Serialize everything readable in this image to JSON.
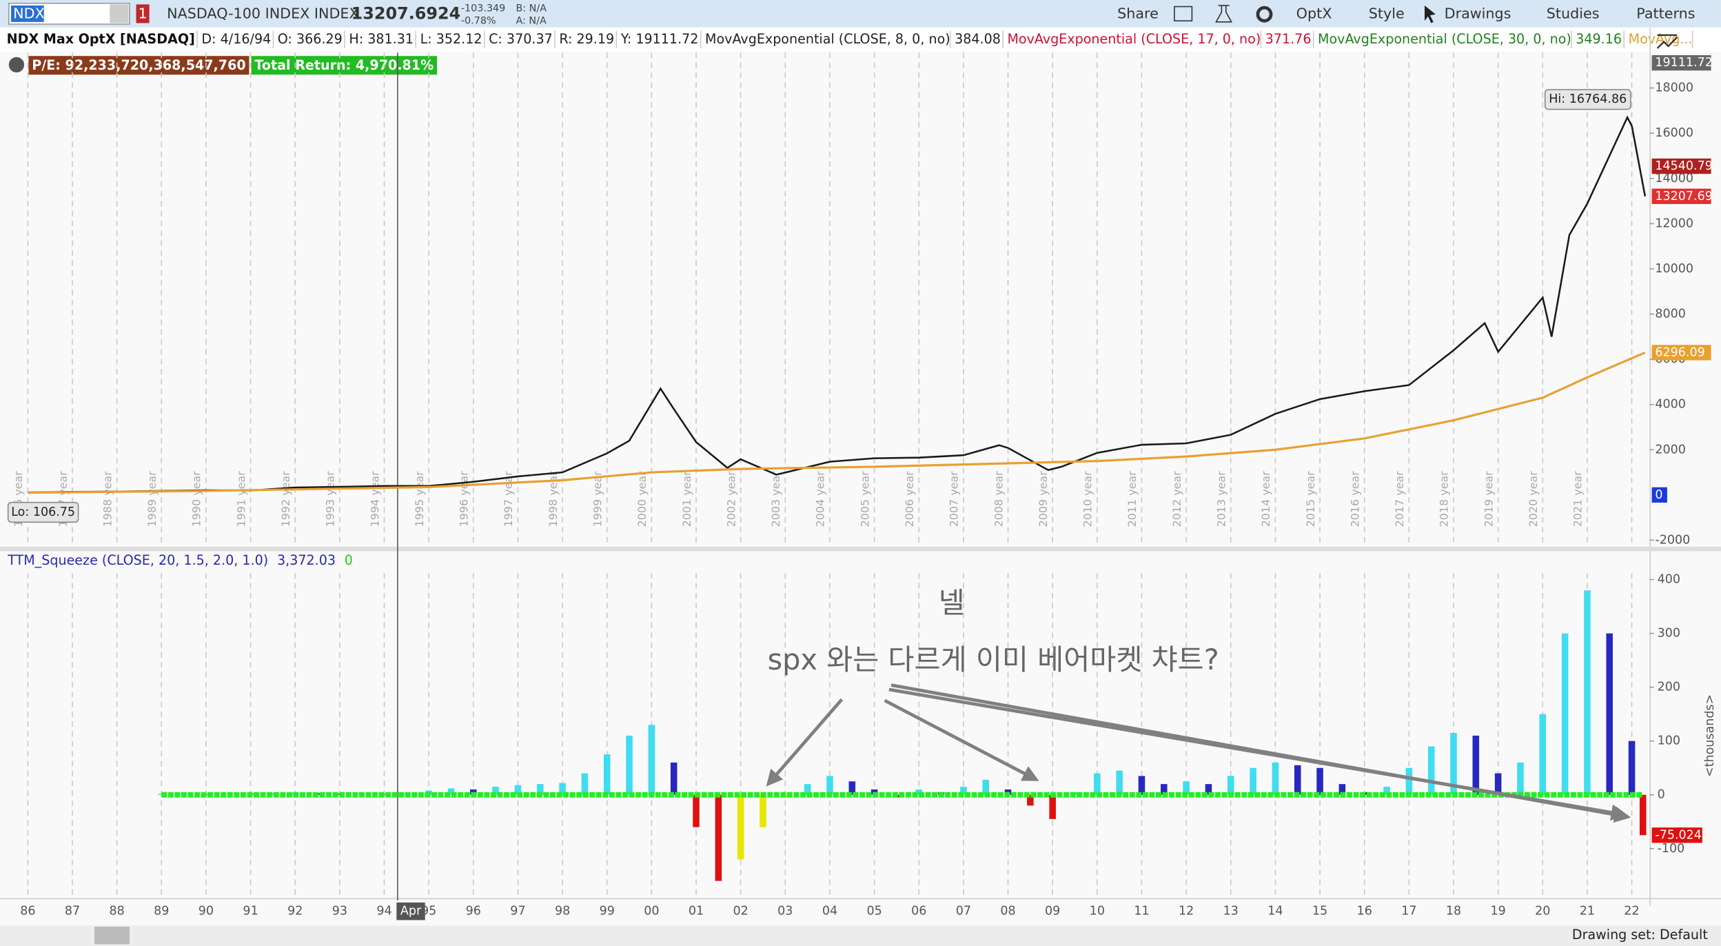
{
  "toolbar": {
    "symbol": "NDX",
    "alert_count": "1",
    "description": "NASDAQ-100 INDEX INDEX",
    "last": "13207.6924",
    "change": "-103.349",
    "change_pct": "-0.78%",
    "bid": "B: N/A",
    "ask": "A: N/A",
    "buttons": [
      "Share",
      "OptX",
      "Style",
      "Drawings",
      "Studies",
      "Patterns"
    ]
  },
  "header": {
    "title": "NDX Max OptX [NASDAQ]",
    "fields": [
      "D: 4/16/94",
      "O: 366.29",
      "H: 381.31",
      "L: 352.12",
      "C: 370.37",
      "R: 29.19",
      "Y: 19111.72"
    ],
    "studies": [
      {
        "label": "MovAvgExponential (CLOSE, 8, 0, no)",
        "value": "384.08",
        "color": "#222222"
      },
      {
        "label": "MovAvgExponential (CLOSE, 17, 0, no)",
        "value": "371.76",
        "color": "#d01030"
      },
      {
        "label": "MovAvgExponential (CLOSE, 30, 0, no)",
        "value": "349.16",
        "color": "#208020"
      },
      {
        "label": "MovAvg...",
        "value": "",
        "color": "#e0a030"
      }
    ],
    "badges": [
      {
        "text": "P/E: 92,233,720,368,547,760",
        "color": "#8b3a1a"
      },
      {
        "text": "Total Return: 4,970.81%",
        "color": "#22bb22"
      }
    ]
  },
  "chart_data": [
    {
      "type": "line",
      "xlim": [
        1985.5,
        2022.4
      ],
      "ylim": [
        -2244,
        19561
      ],
      "yticks": [
        -2000,
        2000,
        4000,
        6000,
        8000,
        10000,
        12000,
        14000,
        16000,
        18000
      ],
      "year_labels": [
        {
          "value": 1986,
          "label": "1986 year"
        },
        {
          "value": 1987,
          "label": "1987 year"
        },
        {
          "value": 1988,
          "label": "1988 year"
        },
        {
          "value": 1989,
          "label": "1989 year"
        },
        {
          "value": 1990,
          "label": "1990 year"
        },
        {
          "value": 1991,
          "label": "1991 year"
        },
        {
          "value": 1992,
          "label": "1992 year"
        },
        {
          "value": 1993,
          "label": "1993 year"
        },
        {
          "value": 1994,
          "label": "1994 year"
        },
        {
          "value": 1995,
          "label": "1995 year"
        },
        {
          "value": 1996,
          "label": "1996 year"
        },
        {
          "value": 1997,
          "label": "1997 year"
        },
        {
          "value": 1998,
          "label": "1998 year"
        },
        {
          "value": 1999,
          "label": "1999 year"
        },
        {
          "value": 2000,
          "label": "2000 year"
        },
        {
          "value": 2001,
          "label": "2001 year"
        },
        {
          "value": 2002,
          "label": "2002 year"
        },
        {
          "value": 2003,
          "label": "2003 year"
        },
        {
          "value": 2004,
          "label": "2004 year"
        },
        {
          "value": 2005,
          "label": "2005 year"
        },
        {
          "value": 2006,
          "label": "2006 year"
        },
        {
          "value": 2007,
          "label": "2007 year"
        },
        {
          "value": 2008,
          "label": "2008 year"
        },
        {
          "value": 2009,
          "label": "2009 year"
        },
        {
          "value": 2010,
          "label": "2010 year"
        },
        {
          "value": 2011,
          "label": "2011 year"
        },
        {
          "value": 2012,
          "label": "2012 year"
        },
        {
          "value": 2013,
          "label": "2013 year"
        },
        {
          "value": 2014,
          "label": "2014 year"
        },
        {
          "value": 2015,
          "label": "2015 year"
        },
        {
          "value": 2016,
          "label": "2016 year"
        },
        {
          "value": 2017,
          "label": "2017 year"
        },
        {
          "value": 2018,
          "label": "2018 year"
        },
        {
          "value": 2019,
          "label": "2019 year"
        },
        {
          "value": 2020,
          "label": "2020 year"
        },
        {
          "value": 2021,
          "label": "2021 year"
        }
      ],
      "series": [
        {
          "color": "#1a1a1a",
          "x": [
            1986,
            1987,
            1988,
            1989,
            1990,
            1991,
            1992,
            1993,
            1994,
            1995,
            1996,
            1997,
            1998,
            1999,
            1999.5,
            2000.2,
            2000.5,
            2001,
            2001.7,
            2002,
            2002.8,
            2003,
            2004,
            2005,
            2006,
            2007,
            2007.8,
            2008,
            2008.9,
            2009.2,
            2010,
            2011,
            2012,
            2013,
            2014,
            2015,
            2016,
            2017,
            2018,
            2018.7,
            2019,
            2020,
            2020.2,
            2020.6,
            2021,
            2021.9,
            2022,
            2022.3
          ],
          "values": [
            110,
            140,
            150,
            180,
            210,
            200,
            330,
            360,
            400,
            400,
            580,
            820,
            1000,
            1840,
            2400,
            4700,
            3800,
            2340,
            1200,
            1580,
            900,
            990,
            1470,
            1620,
            1650,
            1760,
            2200,
            2080,
            1100,
            1250,
            1860,
            2220,
            2280,
            2660,
            3590,
            4240,
            4590,
            4860,
            6400,
            7600,
            6330,
            8730,
            7000,
            11500,
            12890,
            16700,
            16320,
            13207.69
          ]
        },
        {
          "color": "#e8a030",
          "x": [
            1986,
            1990,
            1995,
            1998,
            2000,
            2002,
            2005,
            2008,
            2010,
            2012,
            2014,
            2016,
            2018,
            2020,
            2021,
            2022.3
          ],
          "values": [
            100,
            180,
            350,
            650,
            1000,
            1150,
            1250,
            1400,
            1500,
            1700,
            2000,
            2500,
            3300,
            4300,
            5200,
            6296.09
          ]
        }
      ],
      "price_markers": [
        {
          "value": 19111.72,
          "color": "#666666"
        },
        {
          "value": 14540.79,
          "color": "#b02020"
        },
        {
          "value": 13207.69,
          "color": "#e03030"
        },
        {
          "value": 6296.09,
          "color": "#e8a030"
        },
        {
          "value": 0,
          "color": "#1a3adb"
        }
      ],
      "hi": {
        "value": 16764.86,
        "label": "Hi: 16764.86",
        "x": 2021.9
      },
      "lo": {
        "value": 106.75,
        "label": "Lo: 106.75",
        "x": 1986
      }
    },
    {
      "type": "histogram",
      "title": "TTM_Squeeze (CLOSE, 20, 1.5, 2.0, 1.0)",
      "readout": "3,372.03",
      "readout2": "0",
      "unit": "<thousands>",
      "xlim": [
        1985.5,
        2022.4
      ],
      "ylim": [
        -192,
        412
      ],
      "yticks": [
        -100,
        0,
        100,
        200,
        300,
        400
      ],
      "bar_colors": [
        "#40dcf0",
        "#2828c0",
        "#e01010",
        "#e6e600"
      ],
      "squeeze_color": "#22ee22",
      "x": [
        1989,
        1989.5,
        1990,
        1990.5,
        1991,
        1991.5,
        1992,
        1992.5,
        1993,
        1993.5,
        1994,
        1994.5,
        1995,
        1995.5,
        1996,
        1996.5,
        1997,
        1997.5,
        1998,
        1998.5,
        1999,
        1999.5,
        2000,
        2000.5,
        2001,
        2001.5,
        2002,
        2002.5,
        2003,
        2003.5,
        2004,
        2004.5,
        2005,
        2005.5,
        2006,
        2006.5,
        2007,
        2007.5,
        2008,
        2008.5,
        2009,
        2009.5,
        2010,
        2010.5,
        2011,
        2011.5,
        2012,
        2012.5,
        2013,
        2013.5,
        2014,
        2014.5,
        2015,
        2015.5,
        2016,
        2016.5,
        2017,
        2017.5,
        2018,
        2018.5,
        2019,
        2019.5,
        2020,
        2020.5,
        2021,
        2021.5,
        2022,
        2022.25
      ],
      "values": [
        2,
        2,
        1,
        1,
        3,
        3,
        4,
        3,
        2,
        2,
        1,
        2,
        8,
        12,
        10,
        15,
        18,
        20,
        22,
        40,
        75,
        110,
        130,
        60,
        -60,
        -160,
        -120,
        -60,
        -5,
        20,
        35,
        25,
        10,
        -5,
        10,
        5,
        15,
        28,
        10,
        -20,
        -45,
        5,
        40,
        45,
        35,
        20,
        25,
        20,
        35,
        50,
        60,
        55,
        50,
        20,
        5,
        15,
        50,
        90,
        115,
        110,
        40,
        60,
        150,
        300,
        380,
        300,
        100,
        -75.024
      ],
      "marker": {
        "value": -75.024,
        "color": "#e01010"
      }
    }
  ],
  "xticks": [
    {
      "value": 1986,
      "label": "86"
    },
    {
      "value": 1987,
      "label": "87"
    },
    {
      "value": 1988,
      "label": "88"
    },
    {
      "value": 1989,
      "label": "89"
    },
    {
      "value": 1990,
      "label": "90"
    },
    {
      "value": 1991,
      "label": "91"
    },
    {
      "value": 1992,
      "label": "92"
    },
    {
      "value": 1993,
      "label": "93"
    },
    {
      "value": 1994,
      "label": "94"
    },
    {
      "value": 1995,
      "label": "95"
    },
    {
      "value": 1996,
      "label": "96"
    },
    {
      "value": 1997,
      "label": "97"
    },
    {
      "value": 1998,
      "label": "98"
    },
    {
      "value": 1999,
      "label": "99"
    },
    {
      "value": 2000,
      "label": "00"
    },
    {
      "value": 2001,
      "label": "01"
    },
    {
      "value": 2002,
      "label": "02"
    },
    {
      "value": 2003,
      "label": "03"
    },
    {
      "value": 2004,
      "label": "04"
    },
    {
      "value": 2005,
      "label": "05"
    },
    {
      "value": 2006,
      "label": "06"
    },
    {
      "value": 2007,
      "label": "07"
    },
    {
      "value": 2008,
      "label": "08"
    },
    {
      "value": 2009,
      "label": "09"
    },
    {
      "value": 2010,
      "label": "10"
    },
    {
      "value": 2011,
      "label": "11"
    },
    {
      "value": 2012,
      "label": "12"
    },
    {
      "value": 2013,
      "label": "13"
    },
    {
      "value": 2014,
      "label": "14"
    },
    {
      "value": 2015,
      "label": "15"
    },
    {
      "value": 2016,
      "label": "16"
    },
    {
      "value": 2017,
      "label": "17"
    },
    {
      "value": 2018,
      "label": "18"
    },
    {
      "value": 2019,
      "label": "19"
    },
    {
      "value": 2020,
      "label": "20"
    },
    {
      "value": 2021,
      "label": "21"
    },
    {
      "value": 2022,
      "label": "22"
    }
  ],
  "cursor": {
    "value": 1994.3,
    "label": "Apr"
  },
  "annotation": {
    "name": "넬",
    "text": "spx 와는 다르게 이미 베어마켓 챠트?"
  },
  "footer": "Drawing set: Default"
}
